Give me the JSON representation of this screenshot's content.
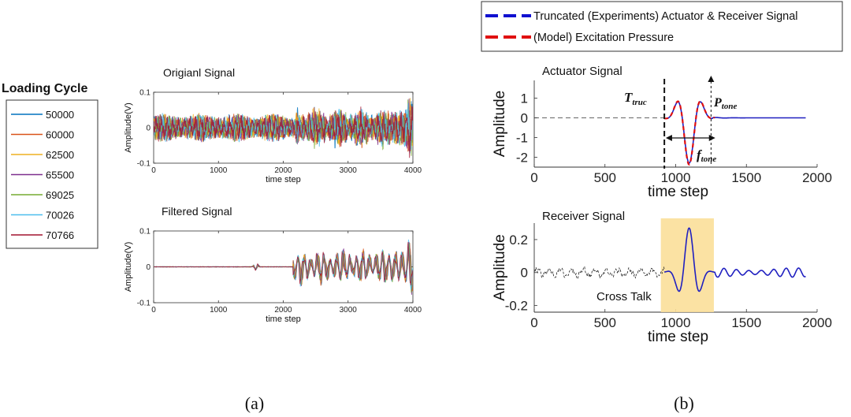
{
  "panel_labels": {
    "a": "(a)",
    "b": "(b)"
  },
  "legend_a": {
    "title": "Loading Cycle",
    "entries": [
      {
        "label": "50000",
        "color": "#0072BD"
      },
      {
        "label": "60000",
        "color": "#D95319"
      },
      {
        "label": "62500",
        "color": "#EDB120"
      },
      {
        "label": "65500",
        "color": "#7E2F8E"
      },
      {
        "label": "69025",
        "color": "#77AC30"
      },
      {
        "label": "70026",
        "color": "#4DBEEE"
      },
      {
        "label": "70766",
        "color": "#A2142F"
      }
    ]
  },
  "legend_b": {
    "entries": [
      {
        "label": "Truncated (Experiments) Actuator & Receiver Signal",
        "color": "#1010D0"
      },
      {
        "label": "(Model)  Excitation Pressure",
        "color": "#E01010"
      }
    ]
  },
  "annotations": {
    "t_truc_main": "T",
    "t_truc_sub": "truc",
    "p_tone_main": "P",
    "p_tone_sub": "tone",
    "f_tone_main": "f",
    "f_tone_sub": "tone",
    "cross_talk": "Cross Talk"
  },
  "chart_data": [
    {
      "id": "original",
      "type": "line",
      "title": "Origianl Signal",
      "xlabel": "time step",
      "ylabel": "Amplitude(V)",
      "xlim": [
        0,
        4000
      ],
      "ylim": [
        -0.1,
        0.1
      ],
      "xticks": [
        0,
        1000,
        2000,
        3000,
        4000
      ],
      "yticks": [
        -0.1,
        0,
        0.1
      ],
      "ytick_labels": [
        "-0.1",
        "0",
        "0.1"
      ]
    },
    {
      "id": "filtered",
      "type": "line",
      "title": "Filtered Signal",
      "xlabel": "time step",
      "ylabel": "Amplitude(V)",
      "xlim": [
        0,
        4000
      ],
      "ylim": [
        -0.1,
        0.1
      ],
      "xticks": [
        0,
        1000,
        2000,
        3000,
        4000
      ],
      "yticks": [
        -0.1,
        0,
        0.1
      ],
      "ytick_labels": [
        "-0.1",
        "0",
        "0.1"
      ]
    },
    {
      "id": "actuator",
      "type": "line",
      "title": "Actuator Signal",
      "xlabel": "time step",
      "ylabel": "Amplitude",
      "xlim": [
        0,
        2000
      ],
      "ylim": [
        -2.5,
        1.9
      ],
      "xticks": [
        0,
        500,
        1000,
        1500,
        2000
      ],
      "yticks": [
        -2,
        -1,
        0,
        1
      ],
      "ytick_labels": [
        "-2",
        "-1",
        "0",
        "1"
      ],
      "truncation_x": 920
    },
    {
      "id": "receiver",
      "type": "line",
      "title": "Receiver Signal",
      "xlabel": "time step",
      "ylabel": "Amplitude",
      "xlim": [
        0,
        2000
      ],
      "ylim": [
        -0.24,
        0.3
      ],
      "xticks": [
        0,
        500,
        1000,
        1500,
        2000
      ],
      "yticks": [
        -0.2,
        0,
        0.2
      ],
      "ytick_labels": [
        "-0.2",
        "0",
        "0.2"
      ],
      "highlight_x": [
        895,
        1270
      ]
    }
  ]
}
